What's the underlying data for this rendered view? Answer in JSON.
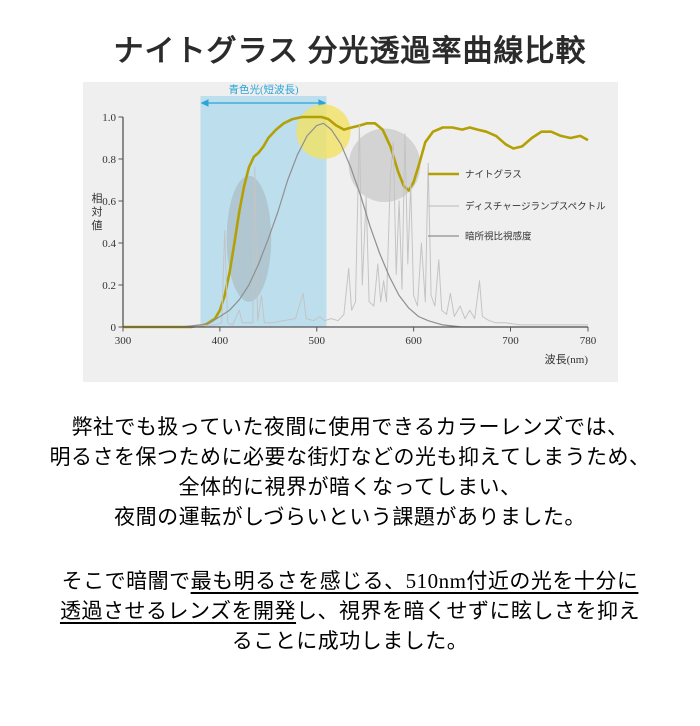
{
  "page": {
    "title": "ナイトグラス 分光透過率曲線比較"
  },
  "chart_data": {
    "type": "line",
    "title": "ナイトグラス 分光透過率曲線比較",
    "xlabel": "波長(nm)",
    "ylabel": "相対値",
    "xlim": [
      300,
      780
    ],
    "ylim": [
      0,
      1.0
    ],
    "x_ticks": [
      300,
      400,
      500,
      600,
      700,
      780
    ],
    "y_ticks": [
      0,
      0.2,
      0.4,
      0.6,
      0.8,
      1.0
    ],
    "grid": false,
    "background": "#efefef",
    "legend_position": "right-inside",
    "band": {
      "label": "青色光(短波長)",
      "from_nm": 380,
      "to_nm": 510,
      "color": "#2aa5d8",
      "fill": "rgba(128,201,235,0.45)"
    },
    "highlights": [
      {
        "shape": "ellipse",
        "cx_nm": 430,
        "cy": 0.42,
        "rx_nm": 23,
        "ry": 0.3,
        "fill": "rgba(150,150,150,0.32)"
      },
      {
        "shape": "ellipse",
        "cx_nm": 570,
        "cy": 0.77,
        "rx_nm": 37,
        "ry": 0.175,
        "fill": "rgba(165,165,165,0.38)"
      },
      {
        "shape": "ellipse",
        "cx_nm": 507,
        "cy": 0.93,
        "rx_nm": 28,
        "ry": 0.13,
        "fill": "rgba(242,226,96,0.78)"
      }
    ],
    "series": [
      {
        "key": "nightglass",
        "name": "ナイトグラス",
        "color": "#b3a005",
        "width": 2.6,
        "points": [
          [
            300,
            0
          ],
          [
            370,
            0
          ],
          [
            385,
            0.01
          ],
          [
            395,
            0.04
          ],
          [
            400,
            0.08
          ],
          [
            405,
            0.15
          ],
          [
            410,
            0.26
          ],
          [
            415,
            0.4
          ],
          [
            420,
            0.55
          ],
          [
            425,
            0.67
          ],
          [
            430,
            0.76
          ],
          [
            435,
            0.81
          ],
          [
            440,
            0.83
          ],
          [
            445,
            0.86
          ],
          [
            450,
            0.9
          ],
          [
            458,
            0.94
          ],
          [
            466,
            0.97
          ],
          [
            475,
            0.99
          ],
          [
            485,
            1.0
          ],
          [
            495,
            1.0
          ],
          [
            505,
            1.0
          ],
          [
            512,
            0.99
          ],
          [
            520,
            0.96
          ],
          [
            528,
            0.94
          ],
          [
            536,
            0.95
          ],
          [
            545,
            0.96
          ],
          [
            552,
            0.97
          ],
          [
            560,
            0.97
          ],
          [
            568,
            0.94
          ],
          [
            576,
            0.86
          ],
          [
            584,
            0.74
          ],
          [
            590,
            0.67
          ],
          [
            595,
            0.65
          ],
          [
            600,
            0.69
          ],
          [
            606,
            0.78
          ],
          [
            612,
            0.88
          ],
          [
            620,
            0.93
          ],
          [
            630,
            0.95
          ],
          [
            640,
            0.95
          ],
          [
            650,
            0.94
          ],
          [
            658,
            0.95
          ],
          [
            666,
            0.94
          ],
          [
            675,
            0.93
          ],
          [
            685,
            0.91
          ],
          [
            695,
            0.87
          ],
          [
            703,
            0.85
          ],
          [
            712,
            0.86
          ],
          [
            722,
            0.9
          ],
          [
            732,
            0.93
          ],
          [
            742,
            0.93
          ],
          [
            752,
            0.91
          ],
          [
            762,
            0.9
          ],
          [
            772,
            0.91
          ],
          [
            780,
            0.89
          ]
        ]
      },
      {
        "key": "discharge-lamp",
        "name": "ディスチャージランプスペクトル",
        "color": "#c4c4c4",
        "width": 1,
        "points": [
          [
            300,
            0
          ],
          [
            360,
            0
          ],
          [
            395,
            0.01
          ],
          [
            402,
            0.02
          ],
          [
            405,
            0.46
          ],
          [
            408,
            0.02
          ],
          [
            413,
            0.01
          ],
          [
            420,
            0.08
          ],
          [
            423,
            0.02
          ],
          [
            430,
            0.02
          ],
          [
            434,
            0.02
          ],
          [
            436,
            0.76
          ],
          [
            439,
            0.03
          ],
          [
            443,
            0.15
          ],
          [
            446,
            0.02
          ],
          [
            455,
            0.02
          ],
          [
            465,
            0.03
          ],
          [
            478,
            0.04
          ],
          [
            486,
            0.16
          ],
          [
            489,
            0.04
          ],
          [
            497,
            0.03
          ],
          [
            503,
            0.05
          ],
          [
            508,
            0.03
          ],
          [
            515,
            0.04
          ],
          [
            522,
            0.03
          ],
          [
            528,
            0.06
          ],
          [
            533,
            0.28
          ],
          [
            536,
            0.08
          ],
          [
            540,
            0.12
          ],
          [
            544,
            0.96
          ],
          [
            547,
            0.2
          ],
          [
            551,
            0.62
          ],
          [
            554,
            0.12
          ],
          [
            559,
            0.1
          ],
          [
            563,
            0.3
          ],
          [
            566,
            0.12
          ],
          [
            569,
            0.22
          ],
          [
            572,
            0.12
          ],
          [
            576,
            0.72
          ],
          [
            579,
            0.88
          ],
          [
            582,
            0.25
          ],
          [
            585,
            0.6
          ],
          [
            588,
            0.18
          ],
          [
            591,
            0.92
          ],
          [
            594,
            0.3
          ],
          [
            597,
            0.68
          ],
          [
            600,
            0.15
          ],
          [
            604,
            0.1
          ],
          [
            608,
            0.4
          ],
          [
            612,
            0.12
          ],
          [
            615,
            0.78
          ],
          [
            618,
            0.15
          ],
          [
            622,
            0.1
          ],
          [
            626,
            0.32
          ],
          [
            629,
            0.08
          ],
          [
            634,
            0.06
          ],
          [
            638,
            0.16
          ],
          [
            642,
            0.05
          ],
          [
            648,
            0.1
          ],
          [
            653,
            0.04
          ],
          [
            658,
            0.08
          ],
          [
            663,
            0.04
          ],
          [
            668,
            0.22
          ],
          [
            671,
            0.05
          ],
          [
            678,
            0.03
          ],
          [
            685,
            0.02
          ],
          [
            695,
            0.02
          ],
          [
            710,
            0.01
          ],
          [
            730,
            0.01
          ],
          [
            760,
            0.01
          ],
          [
            780,
            0.01
          ]
        ]
      },
      {
        "key": "scotopic",
        "name": "暗所視比視感度",
        "color": "#8f8f8f",
        "width": 1.2,
        "points": [
          [
            360,
            0
          ],
          [
            380,
            0.01
          ],
          [
            390,
            0.02
          ],
          [
            400,
            0.05
          ],
          [
            410,
            0.08
          ],
          [
            420,
            0.13
          ],
          [
            430,
            0.2
          ],
          [
            440,
            0.3
          ],
          [
            450,
            0.42
          ],
          [
            460,
            0.55
          ],
          [
            470,
            0.7
          ],
          [
            480,
            0.82
          ],
          [
            490,
            0.91
          ],
          [
            500,
            0.96
          ],
          [
            507,
            0.97
          ],
          [
            515,
            0.94
          ],
          [
            525,
            0.87
          ],
          [
            535,
            0.76
          ],
          [
            545,
            0.63
          ],
          [
            555,
            0.48
          ],
          [
            565,
            0.35
          ],
          [
            575,
            0.24
          ],
          [
            585,
            0.15
          ],
          [
            595,
            0.09
          ],
          [
            605,
            0.05
          ],
          [
            615,
            0.03
          ],
          [
            630,
            0.01
          ],
          [
            650,
            0
          ],
          [
            780,
            0
          ]
        ]
      }
    ]
  },
  "paragraph1": {
    "lines": [
      "弊社でも扱っていた夜間に使用できるカラーレンズでは、",
      "明るさを保つために必要な街灯などの光も抑えてしまうため、",
      "全体的に視界が暗くなってしまい、",
      "夜間の運転がしづらいという課題がありました。"
    ]
  },
  "paragraph2": {
    "lines": [
      [
        {
          "text": "そこで暗闇で",
          "u": false
        },
        {
          "text": "最も明るさを感じる、510nm付近の光を十分に",
          "u": true
        }
      ],
      [
        {
          "text": "透過させるレンズを開発",
          "u": true
        },
        {
          "text": "し、視界を暗くせずに眩しさを抑え",
          "u": false
        }
      ],
      [
        {
          "text": "ることに成功しました。",
          "u": false
        }
      ]
    ]
  }
}
